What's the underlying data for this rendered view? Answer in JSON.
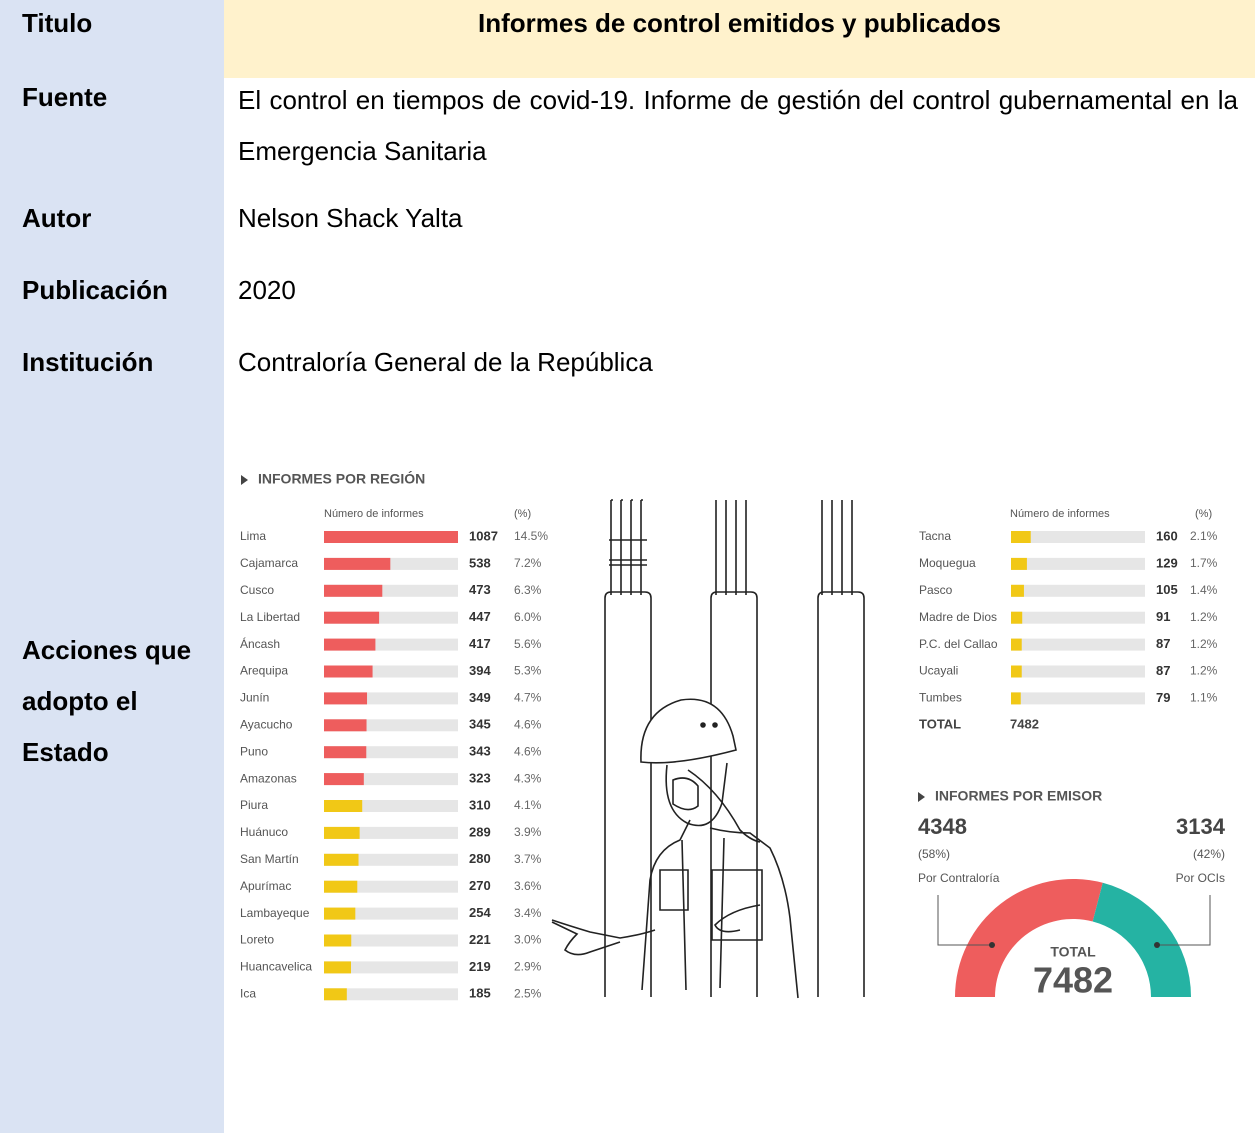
{
  "table": {
    "rows": [
      {
        "label": "Titulo",
        "value": "Informes de control emitidos y publicados"
      },
      {
        "label": "Fuente",
        "value": "El control en tiempos de covid-19. Informe de gestión del control gubernamental en la Emergencia Sanitaria"
      },
      {
        "label": "Autor",
        "value": "Nelson Shack Yalta"
      },
      {
        "label": "Publicación",
        "value": "2020"
      },
      {
        "label": "Institución",
        "value": "Contraloría General de la República"
      },
      {
        "label": "Acciones que adopto el Estado"
      }
    ]
  },
  "infographic": {
    "region": {
      "title": "INFORMES POR REGIÓN",
      "count_header": "Número de informes",
      "pct_header": "(%)",
      "xlim": [
        0,
        1087
      ],
      "rows": [
        {
          "name": "Lima",
          "count": 1087,
          "pct": "14.5%",
          "color": "#ee5d5d"
        },
        {
          "name": "Cajamarca",
          "count": 538,
          "pct": "7.2%",
          "color": "#ee5d5d"
        },
        {
          "name": "Cusco",
          "count": 473,
          "pct": "6.3%",
          "color": "#ee5d5d"
        },
        {
          "name": "La Libertad",
          "count": 447,
          "pct": "6.0%",
          "color": "#ee5d5d"
        },
        {
          "name": "Áncash",
          "count": 417,
          "pct": "5.6%",
          "color": "#ee5d5d"
        },
        {
          "name": "Arequipa",
          "count": 394,
          "pct": "5.3%",
          "color": "#ee5d5d"
        },
        {
          "name": "Junín",
          "count": 349,
          "pct": "4.7%",
          "color": "#ee5d5d"
        },
        {
          "name": "Ayacucho",
          "count": 345,
          "pct": "4.6%",
          "color": "#ee5d5d"
        },
        {
          "name": "Puno",
          "count": 343,
          "pct": "4.6%",
          "color": "#ee5d5d"
        },
        {
          "name": "Amazonas",
          "count": 323,
          "pct": "4.3%",
          "color": "#ee5d5d"
        },
        {
          "name": "Piura",
          "count": 310,
          "pct": "4.1%",
          "color": "#f1c816"
        },
        {
          "name": "Huánuco",
          "count": 289,
          "pct": "3.9%",
          "color": "#f1c816"
        },
        {
          "name": "San Martín",
          "count": 280,
          "pct": "3.7%",
          "color": "#f1c816"
        },
        {
          "name": "Apurímac",
          "count": 270,
          "pct": "3.6%",
          "color": "#f1c816"
        },
        {
          "name": "Lambayeque",
          "count": 254,
          "pct": "3.4%",
          "color": "#f1c816"
        },
        {
          "name": "Loreto",
          "count": 221,
          "pct": "3.0%",
          "color": "#f1c816"
        },
        {
          "name": "Huancavelica",
          "count": 219,
          "pct": "2.9%",
          "color": "#f1c816"
        },
        {
          "name": "Ica",
          "count": 185,
          "pct": "2.5%",
          "color": "#f1c816"
        }
      ],
      "rows_right": [
        {
          "name": "Tacna",
          "count": 160,
          "pct": "2.1%",
          "color": "#f1c816"
        },
        {
          "name": "Moquegua",
          "count": 129,
          "pct": "1.7%",
          "color": "#f1c816"
        },
        {
          "name": "Pasco",
          "count": 105,
          "pct": "1.4%",
          "color": "#f1c816"
        },
        {
          "name": "Madre de Dios",
          "count": 91,
          "pct": "1.2%",
          "color": "#f1c816"
        },
        {
          "name": "P.C. del Callao",
          "count": 87,
          "pct": "1.2%",
          "color": "#f1c816"
        },
        {
          "name": "Ucayali",
          "count": 87,
          "pct": "1.2%",
          "color": "#f1c816"
        },
        {
          "name": "Tumbes",
          "count": 79,
          "pct": "1.1%",
          "color": "#f1c816"
        }
      ],
      "total_label": "TOTAL",
      "total": 7482
    },
    "emisor": {
      "title": "INFORMES POR EMISOR",
      "items": [
        {
          "count": 4348,
          "pct": "(58%)",
          "name": "Por Contraloría",
          "color": "#ee5d5d"
        },
        {
          "count": 3134,
          "pct": "(42%)",
          "name": "Por OCIs",
          "color": "#25b3a3"
        }
      ],
      "total_label": "TOTAL",
      "total": 7482
    }
  }
}
